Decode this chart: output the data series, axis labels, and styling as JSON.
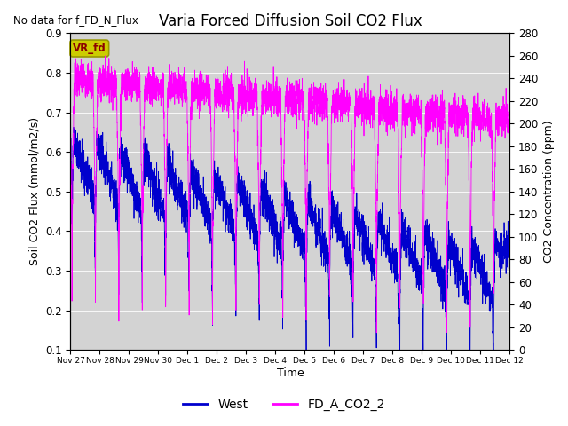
{
  "title": "Varia Forced Diffusion Soil CO2 Flux",
  "top_left_text": "No data for f_FD_N_Flux",
  "xlabel": "Time",
  "ylabel_left": "Soil CO2 Flux (mmol/m2/s)",
  "ylabel_right": "CO2 Concentration (ppm)",
  "ylim_left": [
    0.1,
    0.9
  ],
  "ylim_right": [
    0,
    280
  ],
  "yticks_left": [
    0.1,
    0.2,
    0.3,
    0.4,
    0.5,
    0.6,
    0.7,
    0.8,
    0.9
  ],
  "yticks_right": [
    0,
    20,
    40,
    60,
    80,
    100,
    120,
    140,
    160,
    180,
    200,
    220,
    240,
    260,
    280
  ],
  "xtick_labels": [
    "Nov 27",
    "Nov 28",
    "Nov 29",
    "Nov 30",
    "Dec 1",
    "Dec 2",
    "Dec 3",
    "Dec 4",
    "Dec 5",
    "Dec 6",
    "Dec 7",
    "Dec 8",
    "Dec 9",
    "Dec 10",
    "Dec 11",
    "Dec 12"
  ],
  "blue_color": "#0000cd",
  "magenta_color": "#ff00ff",
  "legend_blue": "West",
  "legend_magenta": "FD_A_CO2_2",
  "vr_fd_box_text": "VR_fd",
  "vr_fd_box_color": "#cccc00",
  "vr_fd_text_color": "#8b0000",
  "background_color": "#d3d3d3",
  "n_points": 4000,
  "total_days": 15.0,
  "figwidth": 6.4,
  "figheight": 4.8,
  "dpi": 100
}
